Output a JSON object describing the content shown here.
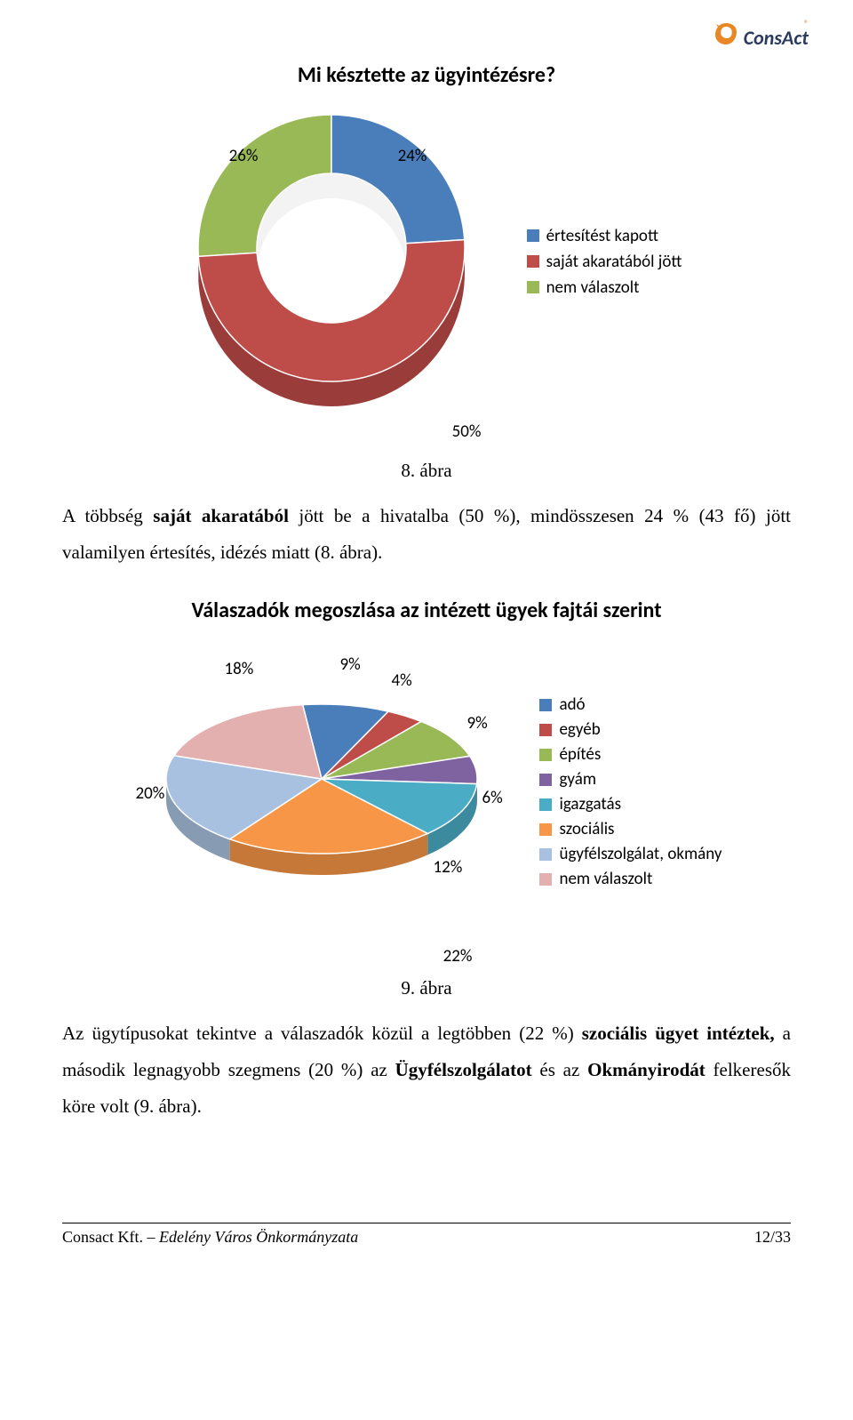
{
  "logo": {
    "text": "ConsAct",
    "reg": "®",
    "icon_color": "#e98724",
    "text_color": "#2a3b5e"
  },
  "chart1": {
    "title": "Mi késztette az ügyintézésre?",
    "type": "donut",
    "slices": [
      {
        "label": "értesítést kapott",
        "value": 24,
        "color": "#4a7ebb",
        "side": "#3a6599"
      },
      {
        "label": "saját akaratából jött",
        "value": 50,
        "color": "#be4c49",
        "side": "#9a3d3a"
      },
      {
        "label": "nem válaszolt",
        "value": 26,
        "color": "#98b955",
        "side": "#7a9644"
      }
    ],
    "label_26": "26%",
    "label_24": "24%",
    "label_50": "50%",
    "inner_ratio": 0.56,
    "depth": 28
  },
  "caption1": "8. ábra",
  "para1_parts": [
    {
      "t": "A többség ",
      "b": false
    },
    {
      "t": "saját akaratából",
      "b": true
    },
    {
      "t": " jött be a hivatalba (50 %), mindösszesen 24 % (43 fő) jött valamilyen értesítés, idézés miatt (8. ábra).",
      "b": false
    }
  ],
  "chart2": {
    "title": "Válaszadók megoszlása az intézett ügyek fajtái szerint",
    "type": "pie3d",
    "slices": [
      {
        "label": "adó",
        "value": 9,
        "color": "#4a7ebb",
        "side": "#3a6599"
      },
      {
        "label": "egyéb",
        "value": 4,
        "color": "#be4c49",
        "side": "#9a3d3a"
      },
      {
        "label": "építés",
        "value": 9,
        "color": "#98b955",
        "side": "#7a9644"
      },
      {
        "label": "gyám",
        "value": 6,
        "color": "#7f63a1",
        "side": "#665081"
      },
      {
        "label": "igazgatás",
        "value": 12,
        "color": "#4aacc5",
        "side": "#3b8a9e"
      },
      {
        "label": "szociális",
        "value": 22,
        "color": "#f79646",
        "side": "#c67838"
      },
      {
        "label": "ügyfélszolgálat, okmány",
        "value": 20,
        "color": "#a9c1e0",
        "side": "#879bb3"
      },
      {
        "label": "nem válaszolt",
        "value": 18,
        "color": "#e3b0af",
        "side": "#b68d8c"
      }
    ],
    "lab_9a": "9%",
    "lab_4": "4%",
    "lab_9b": "9%",
    "lab_6": "6%",
    "lab_12": "12%",
    "lab_22": "22%",
    "lab_20": "20%",
    "lab_18": "18%",
    "depth": 24,
    "tilt": 0.48
  },
  "caption2": "9. ábra",
  "para2_parts": [
    {
      "t": "Az ügytípusokat tekintve a válaszadók közül a legtöbben (22 %)  ",
      "b": false
    },
    {
      "t": "szociális ügyet intéztek,",
      "b": true
    },
    {
      "t": " a második legnagyobb szegmens (20 %) az ",
      "b": false
    },
    {
      "t": "Ügyfélszolgálatot",
      "b": true
    },
    {
      "t": " és az ",
      "b": false
    },
    {
      "t": "Okmányirodát",
      "b": true
    },
    {
      "t": " felkeresők köre volt (9. ábra).",
      "b": false
    }
  ],
  "footer": {
    "left_plain": "Consact Kft. – ",
    "left_italic": "Edelény Város Önkormányzata",
    "right": "12/33"
  }
}
